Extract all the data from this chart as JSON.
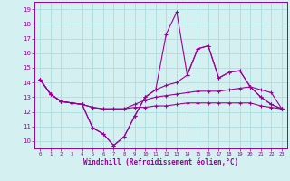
{
  "xlabel": "Windchill (Refroidissement éolien,°C)",
  "hours": [
    0,
    1,
    2,
    3,
    4,
    5,
    6,
    7,
    8,
    9,
    10,
    11,
    12,
    13,
    14,
    15,
    16,
    17,
    18,
    19,
    20,
    21,
    22,
    23
  ],
  "line1": [
    14.2,
    13.2,
    12.7,
    12.6,
    12.5,
    10.9,
    10.5,
    9.7,
    10.3,
    11.7,
    13.0,
    13.5,
    13.8,
    14.0,
    14.5,
    16.3,
    16.5,
    14.3,
    14.7,
    14.8,
    13.7,
    13.0,
    12.5,
    12.2
  ],
  "line2": [
    14.2,
    13.2,
    12.7,
    12.6,
    12.5,
    10.9,
    10.5,
    9.7,
    10.3,
    11.7,
    13.0,
    13.5,
    17.3,
    18.8,
    14.5,
    16.3,
    16.5,
    14.3,
    14.7,
    14.8,
    13.7,
    13.0,
    12.5,
    12.2
  ],
  "line3": [
    14.2,
    13.2,
    12.7,
    12.6,
    12.5,
    12.3,
    12.2,
    12.2,
    12.2,
    12.3,
    12.3,
    12.4,
    12.4,
    12.5,
    12.6,
    12.6,
    12.6,
    12.6,
    12.6,
    12.6,
    12.6,
    12.4,
    12.3,
    12.2
  ],
  "line4": [
    14.2,
    13.2,
    12.7,
    12.6,
    12.5,
    12.3,
    12.2,
    12.2,
    12.2,
    12.5,
    12.8,
    13.0,
    13.1,
    13.2,
    13.3,
    13.4,
    13.4,
    13.4,
    13.5,
    13.6,
    13.7,
    13.5,
    13.3,
    12.2
  ],
  "color": "#990099",
  "bg_color": "#d4f0f0",
  "grid_color": "#aadddd",
  "ylim": [
    9.5,
    19.5
  ],
  "yticks": [
    10,
    11,
    12,
    13,
    14,
    15,
    16,
    17,
    18,
    19
  ],
  "xlim": [
    -0.5,
    23.5
  ]
}
